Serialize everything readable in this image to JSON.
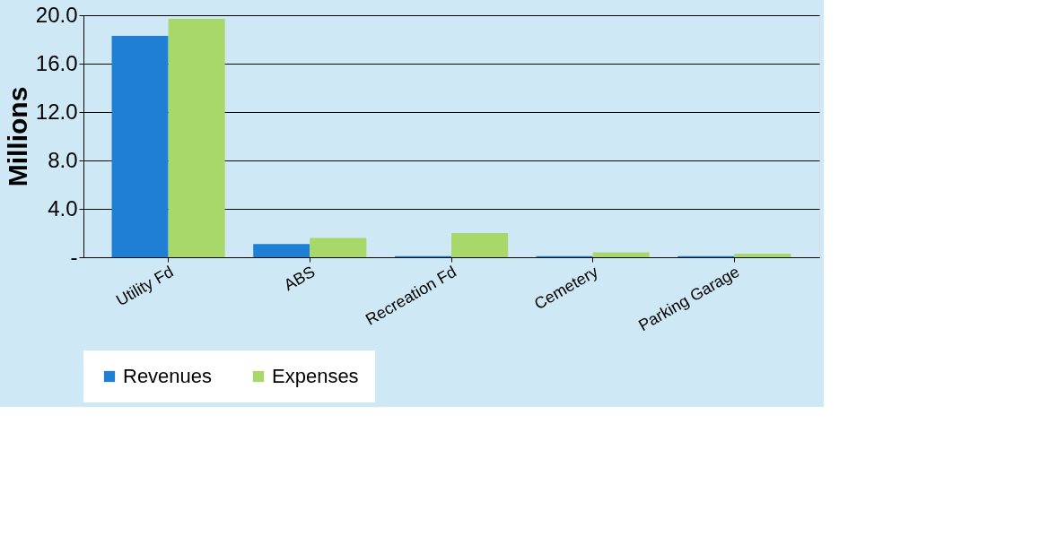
{
  "chart_data": {
    "type": "bar",
    "ylabel": "Millions",
    "categories": [
      "Utility Fd",
      "ABS",
      "Recreation Fd",
      "Cemetery",
      "Parking Garage"
    ],
    "series": [
      {
        "name": "Revenues",
        "color": "#1f7fd4",
        "values": [
          18.3,
          1.1,
          0.1,
          0.1,
          0.1
        ]
      },
      {
        "name": "Expenses",
        "color": "#a8d86a",
        "values": [
          19.7,
          1.6,
          2.0,
          0.4,
          0.3
        ]
      }
    ],
    "ylim": [
      0,
      20
    ],
    "yticks": [
      {
        "value": 0,
        "label": "-"
      },
      {
        "value": 4,
        "label": "4.0"
      },
      {
        "value": 8,
        "label": "8.0"
      },
      {
        "value": 12,
        "label": "12.0"
      },
      {
        "value": 16,
        "label": "16.0"
      },
      {
        "value": 20,
        "label": "20.0"
      }
    ],
    "grid": "y",
    "legend": "bottom"
  }
}
